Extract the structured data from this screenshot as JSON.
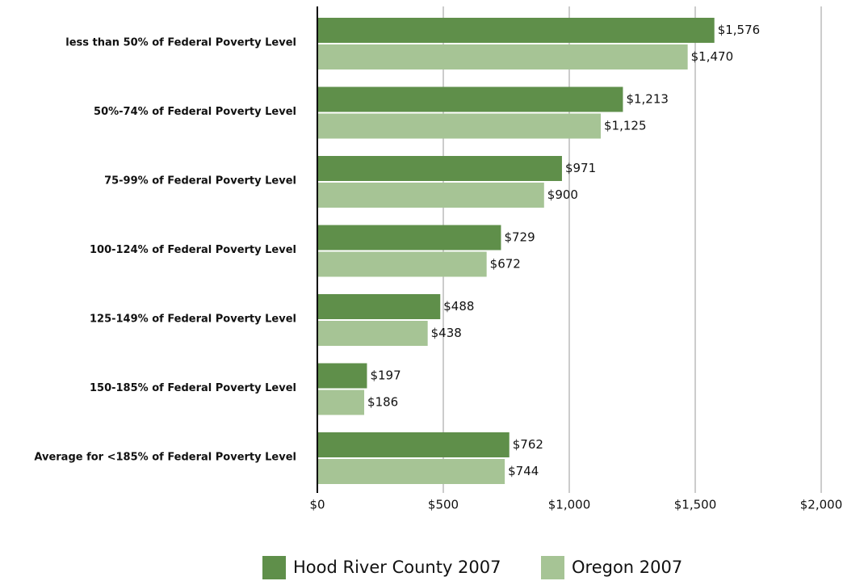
{
  "chart_data": {
    "type": "hbar",
    "categories": [
      "less than 50% of Federal Poverty Level",
      "50%-74% of Federal Poverty Level",
      "75-99% of Federal Poverty Level",
      "100-124% of Federal Poverty Level",
      "125-149% of Federal Poverty Level",
      "150-185% of Federal Poverty Level",
      "Average for <185% of Federal Poverty Level"
    ],
    "series": [
      {
        "name": "Hood River County 2007",
        "color": "#5f8f4a",
        "values": [
          1576,
          1213,
          971,
          729,
          488,
          197,
          762
        ],
        "value_labels": [
          "$1,576",
          "$1,213",
          "$971",
          "$729",
          "$488",
          "$197",
          "$762"
        ]
      },
      {
        "name": "Oregon 2007",
        "color": "#a6c495",
        "values": [
          1470,
          1125,
          900,
          672,
          438,
          186,
          744
        ],
        "value_labels": [
          "$1,470",
          "$1,125",
          "$900",
          "$672",
          "$438",
          "$186",
          "$744"
        ]
      }
    ],
    "xlim": [
      0,
      2000
    ],
    "xticks": [
      {
        "value": 0,
        "label": "$0"
      },
      {
        "value": 500,
        "label": "$500"
      },
      {
        "value": 1000,
        "label": "$1,000"
      },
      {
        "value": 1500,
        "label": "$1,500"
      },
      {
        "value": 2000,
        "label": "$2,000"
      }
    ],
    "grid": true,
    "legend": "bottom"
  }
}
